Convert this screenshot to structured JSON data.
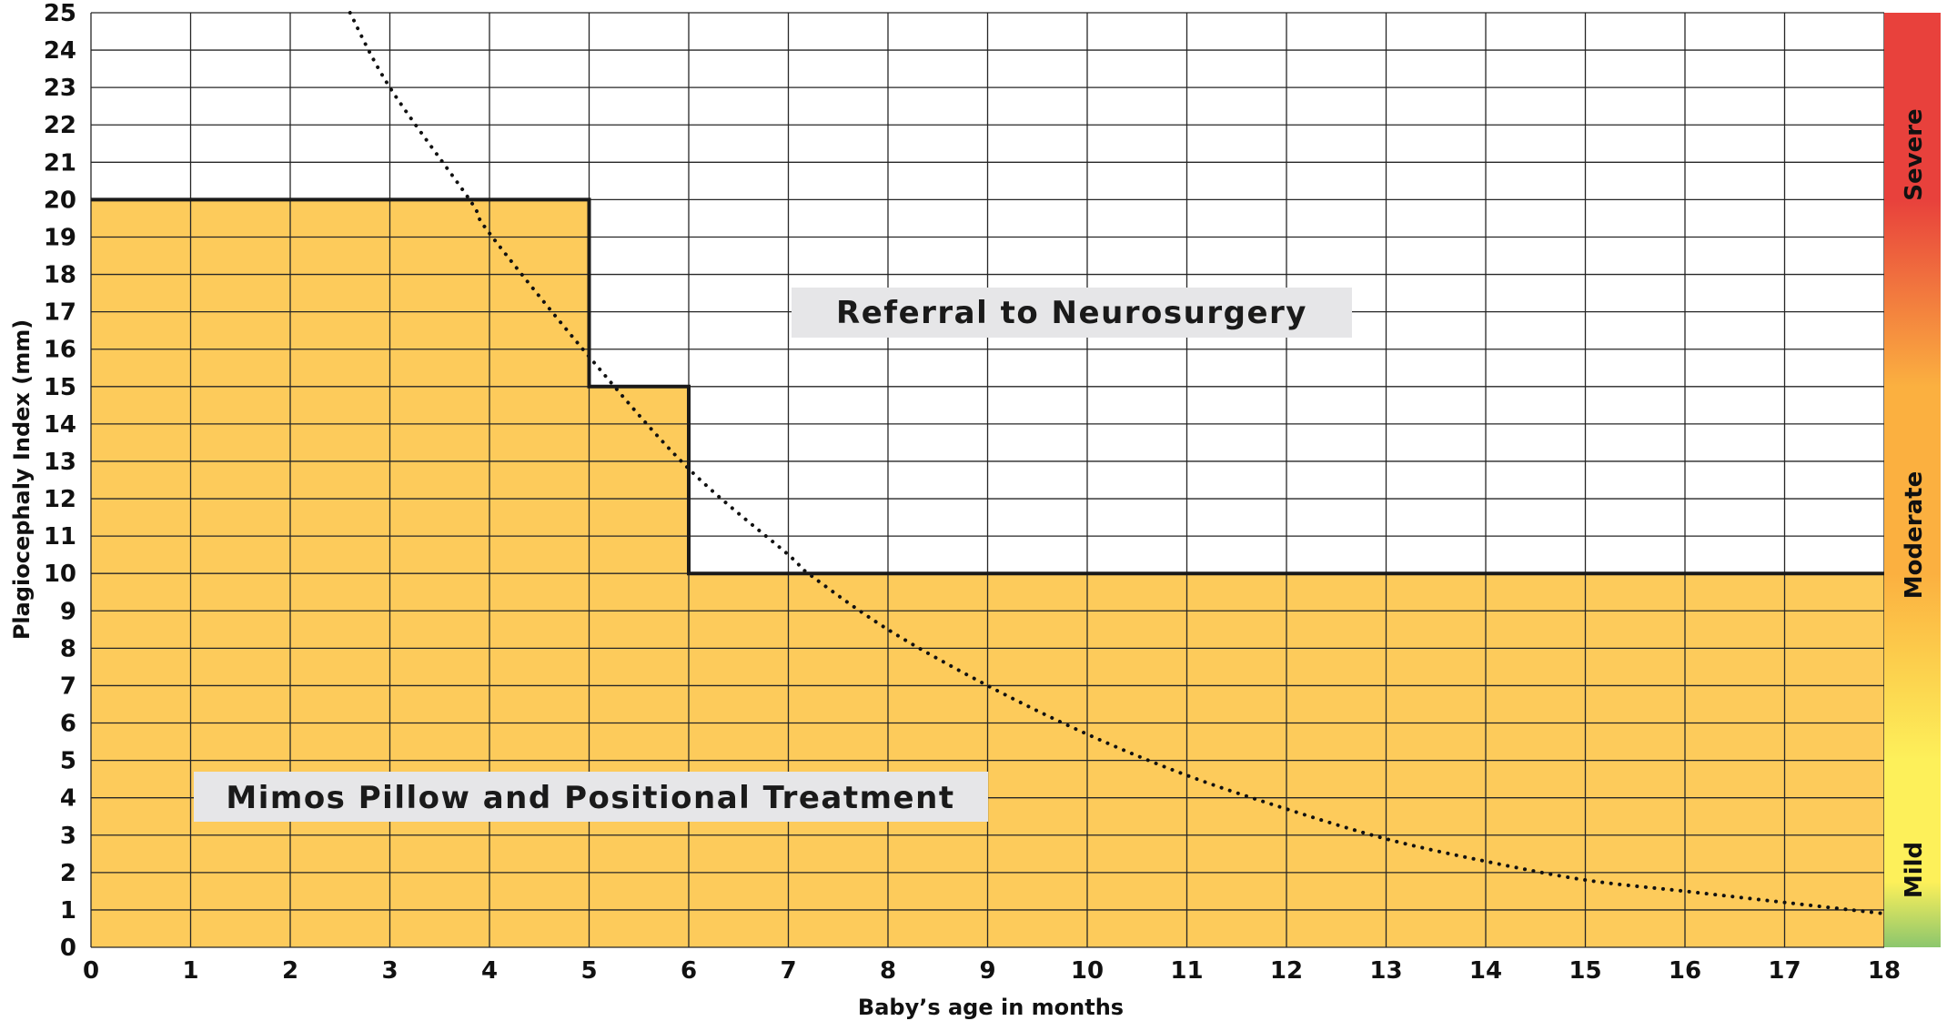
{
  "chart_data": {
    "type": "area",
    "xlabel": "Baby’s age in months",
    "ylabel": "Plagiocephaly Index (mm)",
    "xlim": [
      0,
      18
    ],
    "ylim": [
      0,
      25
    ],
    "x_ticks": [
      "0",
      "1",
      "2",
      "3",
      "4",
      "5",
      "6",
      "7",
      "8",
      "9",
      "10",
      "11",
      "12",
      "13",
      "14",
      "15",
      "16",
      "17",
      "18"
    ],
    "y_ticks": [
      "0",
      "1",
      "2",
      "3",
      "4",
      "5",
      "6",
      "7",
      "8",
      "9",
      "10",
      "11",
      "12",
      "13",
      "14",
      "15",
      "16",
      "17",
      "18",
      "19",
      "20",
      "21",
      "22",
      "23",
      "24",
      "25"
    ],
    "grid": true,
    "series": [
      {
        "style": "step-threshold",
        "x": [
          0,
          5,
          5,
          6,
          6,
          18
        ],
        "y": [
          20,
          20,
          15,
          15,
          10,
          10
        ]
      },
      {
        "style": "dotted-curve",
        "x": [
          2.6,
          3,
          3.8,
          4,
          5,
          6,
          7,
          7.2,
          8,
          9,
          10,
          11,
          12,
          13,
          14,
          15,
          16,
          17,
          18
        ],
        "y": [
          25,
          23,
          20,
          19.1,
          15.8,
          12.8,
          10.5,
          10,
          8.5,
          7,
          5.7,
          4.6,
          3.7,
          2.9,
          2.3,
          1.8,
          1.5,
          1.2,
          0.9
        ]
      }
    ],
    "regions": [
      {
        "label": "Mimos Pillow and Positional Treatment",
        "color": "#FDCB5B"
      },
      {
        "label": "Referral to Neurosurgery",
        "color": "#FFFFFF"
      }
    ],
    "severity_scale": [
      {
        "label": "Severe",
        "color": "#E8413C"
      },
      {
        "label": "Moderate",
        "color": "#FBB040"
      },
      {
        "label": "Mild",
        "color": "#8CC66D"
      }
    ],
    "colors": {
      "fill": "#FDCB5B",
      "grid": "#262626",
      "line": "#1A1A1A",
      "label_box": "#E6E6E8",
      "scale_yellow": "#FDF05A"
    }
  }
}
